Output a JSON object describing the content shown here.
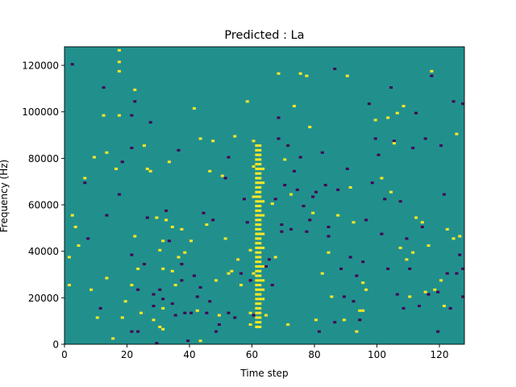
{
  "chart_data": {
    "type": "heatmap",
    "title": "Predicted : La",
    "xlabel": "Time step",
    "ylabel": "Frequency (Hz)",
    "xlim": [
      0,
      128
    ],
    "ylim": [
      0,
      128000
    ],
    "x_ticks": [
      0,
      20,
      40,
      60,
      80,
      100,
      120
    ],
    "y_ticks": [
      0,
      20000,
      40000,
      60000,
      80000,
      100000,
      120000
    ],
    "x_tick_labels": [
      "0",
      "20",
      "40",
      "60",
      "80",
      "100",
      "120"
    ],
    "y_tick_labels": [
      "0",
      "20000",
      "40000",
      "60000",
      "80000",
      "100000",
      "120000"
    ],
    "grid": false,
    "n_time_steps": 128,
    "n_freq_bins": 128,
    "values_legend": {
      "low": -1,
      "mid": 0,
      "high": 1
    },
    "colors": {
      "low": "#440154",
      "mid": "#21908d",
      "high": "#fde725"
    },
    "background_value": 0,
    "high_cells": [
      [
        1,
        25
      ],
      [
        1,
        37
      ],
      [
        2,
        55
      ],
      [
        3,
        50
      ],
      [
        4,
        42
      ],
      [
        6,
        71
      ],
      [
        8,
        23
      ],
      [
        9,
        80
      ],
      [
        10,
        11
      ],
      [
        12,
        98
      ],
      [
        13,
        28
      ],
      [
        13,
        82
      ],
      [
        15,
        2
      ],
      [
        16,
        75
      ],
      [
        17,
        98
      ],
      [
        17,
        117
      ],
      [
        17,
        121
      ],
      [
        17,
        126
      ],
      [
        18,
        11
      ],
      [
        19,
        18
      ],
      [
        21,
        25
      ],
      [
        22,
        46
      ],
      [
        22,
        109
      ],
      [
        23,
        32
      ],
      [
        24,
        13
      ],
      [
        25,
        85
      ],
      [
        26,
        75
      ],
      [
        27,
        74
      ],
      [
        28,
        10
      ],
      [
        29,
        54
      ],
      [
        30,
        40
      ],
      [
        30,
        7
      ],
      [
        31,
        15
      ],
      [
        31,
        44
      ],
      [
        31,
        6
      ],
      [
        31,
        32
      ],
      [
        32,
        53
      ],
      [
        33,
        78
      ],
      [
        34,
        31
      ],
      [
        34,
        50
      ],
      [
        35,
        25
      ],
      [
        36,
        37
      ],
      [
        37,
        49
      ],
      [
        38,
        39
      ],
      [
        40,
        44
      ],
      [
        41,
        101
      ],
      [
        42,
        14
      ],
      [
        43,
        1
      ],
      [
        43,
        88
      ],
      [
        45,
        51
      ],
      [
        46,
        74
      ],
      [
        47,
        87
      ],
      [
        48,
        27
      ],
      [
        49,
        12
      ],
      [
        50,
        72
      ],
      [
        51,
        45
      ],
      [
        52,
        30
      ],
      [
        53,
        31
      ],
      [
        54,
        89
      ],
      [
        55,
        36
      ],
      [
        56,
        25
      ],
      [
        58,
        104
      ],
      [
        59,
        40
      ],
      [
        59,
        8
      ],
      [
        59,
        13
      ],
      [
        60,
        30
      ],
      [
        60,
        87
      ],
      [
        60,
        76
      ],
      [
        60,
        63
      ],
      [
        61,
        85
      ],
      [
        61,
        83
      ],
      [
        61,
        81
      ],
      [
        61,
        79
      ],
      [
        61,
        77
      ],
      [
        61,
        75
      ],
      [
        61,
        73
      ],
      [
        61,
        71
      ],
      [
        61,
        69
      ],
      [
        61,
        67
      ],
      [
        61,
        65
      ],
      [
        61,
        63
      ],
      [
        61,
        61
      ],
      [
        61,
        59
      ],
      [
        61,
        57
      ],
      [
        61,
        55
      ],
      [
        61,
        53
      ],
      [
        61,
        51
      ],
      [
        61,
        49
      ],
      [
        61,
        47
      ],
      [
        61,
        45
      ],
      [
        61,
        43
      ],
      [
        61,
        41
      ],
      [
        61,
        39
      ],
      [
        61,
        37
      ],
      [
        61,
        35
      ],
      [
        61,
        33
      ],
      [
        61,
        31
      ],
      [
        61,
        29
      ],
      [
        61,
        27
      ],
      [
        61,
        25
      ],
      [
        61,
        23
      ],
      [
        61,
        21
      ],
      [
        61,
        19
      ],
      [
        61,
        17
      ],
      [
        61,
        15
      ],
      [
        61,
        13
      ],
      [
        61,
        11
      ],
      [
        61,
        9
      ],
      [
        61,
        7
      ],
      [
        62,
        85
      ],
      [
        62,
        83
      ],
      [
        62,
        81
      ],
      [
        62,
        79
      ],
      [
        62,
        77
      ],
      [
        62,
        75
      ],
      [
        62,
        73
      ],
      [
        62,
        71
      ],
      [
        62,
        69
      ],
      [
        62,
        67
      ],
      [
        62,
        65
      ],
      [
        62,
        63
      ],
      [
        62,
        61
      ],
      [
        62,
        59
      ],
      [
        62,
        57
      ],
      [
        62,
        55
      ],
      [
        62,
        53
      ],
      [
        62,
        51
      ],
      [
        62,
        49
      ],
      [
        62,
        47
      ],
      [
        62,
        45
      ],
      [
        62,
        43
      ],
      [
        62,
        41
      ],
      [
        62,
        39
      ],
      [
        62,
        37
      ],
      [
        62,
        35
      ],
      [
        62,
        33
      ],
      [
        62,
        31
      ],
      [
        62,
        29
      ],
      [
        62,
        27
      ],
      [
        62,
        25
      ],
      [
        62,
        23
      ],
      [
        62,
        21
      ],
      [
        62,
        19
      ],
      [
        62,
        17
      ],
      [
        62,
        15
      ],
      [
        62,
        13
      ],
      [
        62,
        11
      ],
      [
        62,
        9
      ],
      [
        62,
        7
      ],
      [
        63,
        75
      ],
      [
        63,
        69
      ],
      [
        63,
        61
      ],
      [
        63,
        55
      ],
      [
        63,
        47
      ],
      [
        63,
        41
      ],
      [
        63,
        33
      ],
      [
        63,
        27
      ],
      [
        63,
        23
      ],
      [
        63,
        19
      ],
      [
        64,
        12
      ],
      [
        66,
        60
      ],
      [
        67,
        37
      ],
      [
        68,
        116
      ],
      [
        70,
        79
      ],
      [
        71,
        8
      ],
      [
        72,
        64
      ],
      [
        73,
        102
      ],
      [
        75,
        116
      ],
      [
        77,
        115
      ],
      [
        78,
        93
      ],
      [
        79,
        56
      ],
      [
        80,
        10
      ],
      [
        82,
        30
      ],
      [
        84,
        39
      ],
      [
        85,
        20
      ],
      [
        87,
        55
      ],
      [
        89,
        10
      ],
      [
        90,
        115
      ],
      [
        91,
        67
      ],
      [
        92,
        52
      ],
      [
        93,
        5
      ],
      [
        94,
        14
      ],
      [
        95,
        14
      ],
      [
        95,
        26
      ],
      [
        96,
        23
      ],
      [
        99,
        96
      ],
      [
        101,
        71
      ],
      [
        103,
        97
      ],
      [
        104,
        65
      ],
      [
        105,
        86
      ],
      [
        106,
        99
      ],
      [
        107,
        41
      ],
      [
        108,
        102
      ],
      [
        109,
        36
      ],
      [
        110,
        20
      ],
      [
        111,
        39
      ],
      [
        112,
        54
      ],
      [
        114,
        52
      ],
      [
        115,
        22
      ],
      [
        116,
        42
      ],
      [
        117,
        117
      ],
      [
        118,
        23
      ],
      [
        120,
        27
      ],
      [
        121,
        16
      ],
      [
        122,
        49
      ],
      [
        124,
        45
      ],
      [
        125,
        90
      ],
      [
        126,
        46
      ]
    ],
    "low_cells": [
      [
        2,
        120
      ],
      [
        6,
        69
      ],
      [
        7,
        45
      ],
      [
        11,
        15
      ],
      [
        12,
        110
      ],
      [
        13,
        55
      ],
      [
        17,
        64
      ],
      [
        18,
        78
      ],
      [
        21,
        84
      ],
      [
        21,
        38
      ],
      [
        21,
        98
      ],
      [
        21,
        5
      ],
      [
        22,
        104
      ],
      [
        23,
        23
      ],
      [
        23,
        5
      ],
      [
        25,
        34
      ],
      [
        26,
        54
      ],
      [
        27,
        95
      ],
      [
        28,
        16
      ],
      [
        28,
        21
      ],
      [
        29,
        0
      ],
      [
        30,
        23
      ],
      [
        31,
        19
      ],
      [
        32,
        57
      ],
      [
        33,
        44
      ],
      [
        34,
        17
      ],
      [
        35,
        12
      ],
      [
        36,
        83
      ],
      [
        37,
        34
      ],
      [
        37,
        27
      ],
      [
        38,
        13
      ],
      [
        39,
        1
      ],
      [
        40,
        13
      ],
      [
        41,
        29
      ],
      [
        42,
        20
      ],
      [
        43,
        24
      ],
      [
        44,
        56
      ],
      [
        45,
        13
      ],
      [
        46,
        18
      ],
      [
        47,
        53
      ],
      [
        48,
        5
      ],
      [
        49,
        8
      ],
      [
        51,
        71
      ],
      [
        52,
        13
      ],
      [
        52,
        80
      ],
      [
        54,
        11
      ],
      [
        55,
        36
      ],
      [
        56,
        30
      ],
      [
        57,
        62
      ],
      [
        58,
        52
      ],
      [
        59,
        27
      ],
      [
        60,
        12
      ],
      [
        61,
        19
      ],
      [
        64,
        33
      ],
      [
        65,
        36
      ],
      [
        66,
        25
      ],
      [
        67,
        62
      ],
      [
        68,
        97
      ],
      [
        68,
        88
      ],
      [
        69,
        48
      ],
      [
        69,
        51
      ],
      [
        70,
        68
      ],
      [
        71,
        85
      ],
      [
        72,
        49
      ],
      [
        73,
        74
      ],
      [
        74,
        66
      ],
      [
        75,
        80
      ],
      [
        76,
        59
      ],
      [
        77,
        48
      ],
      [
        78,
        53
      ],
      [
        79,
        63
      ],
      [
        80,
        65
      ],
      [
        81,
        5
      ],
      [
        82,
        82
      ],
      [
        83,
        68
      ],
      [
        84,
        50
      ],
      [
        84,
        46
      ],
      [
        86,
        118
      ],
      [
        86,
        9
      ],
      [
        87,
        66
      ],
      [
        88,
        32
      ],
      [
        89,
        20
      ],
      [
        90,
        75
      ],
      [
        91,
        37
      ],
      [
        92,
        18
      ],
      [
        93,
        29
      ],
      [
        94,
        10
      ],
      [
        95,
        35
      ],
      [
        96,
        53
      ],
      [
        97,
        103
      ],
      [
        98,
        69
      ],
      [
        99,
        88
      ],
      [
        100,
        81
      ],
      [
        101,
        47
      ],
      [
        102,
        62
      ],
      [
        103,
        32
      ],
      [
        104,
        110
      ],
      [
        105,
        87
      ],
      [
        106,
        21
      ],
      [
        107,
        61
      ],
      [
        108,
        15
      ],
      [
        109,
        45
      ],
      [
        110,
        32
      ],
      [
        111,
        84
      ],
      [
        112,
        99
      ],
      [
        113,
        16
      ],
      [
        114,
        50
      ],
      [
        115,
        88
      ],
      [
        116,
        21
      ],
      [
        117,
        115
      ],
      [
        119,
        22
      ],
      [
        119,
        5
      ],
      [
        120,
        85
      ],
      [
        121,
        64
      ],
      [
        122,
        30
      ],
      [
        123,
        15
      ],
      [
        124,
        104
      ],
      [
        125,
        30
      ],
      [
        126,
        38
      ],
      [
        127,
        32
      ],
      [
        127,
        103
      ],
      [
        127,
        20
      ]
    ]
  }
}
